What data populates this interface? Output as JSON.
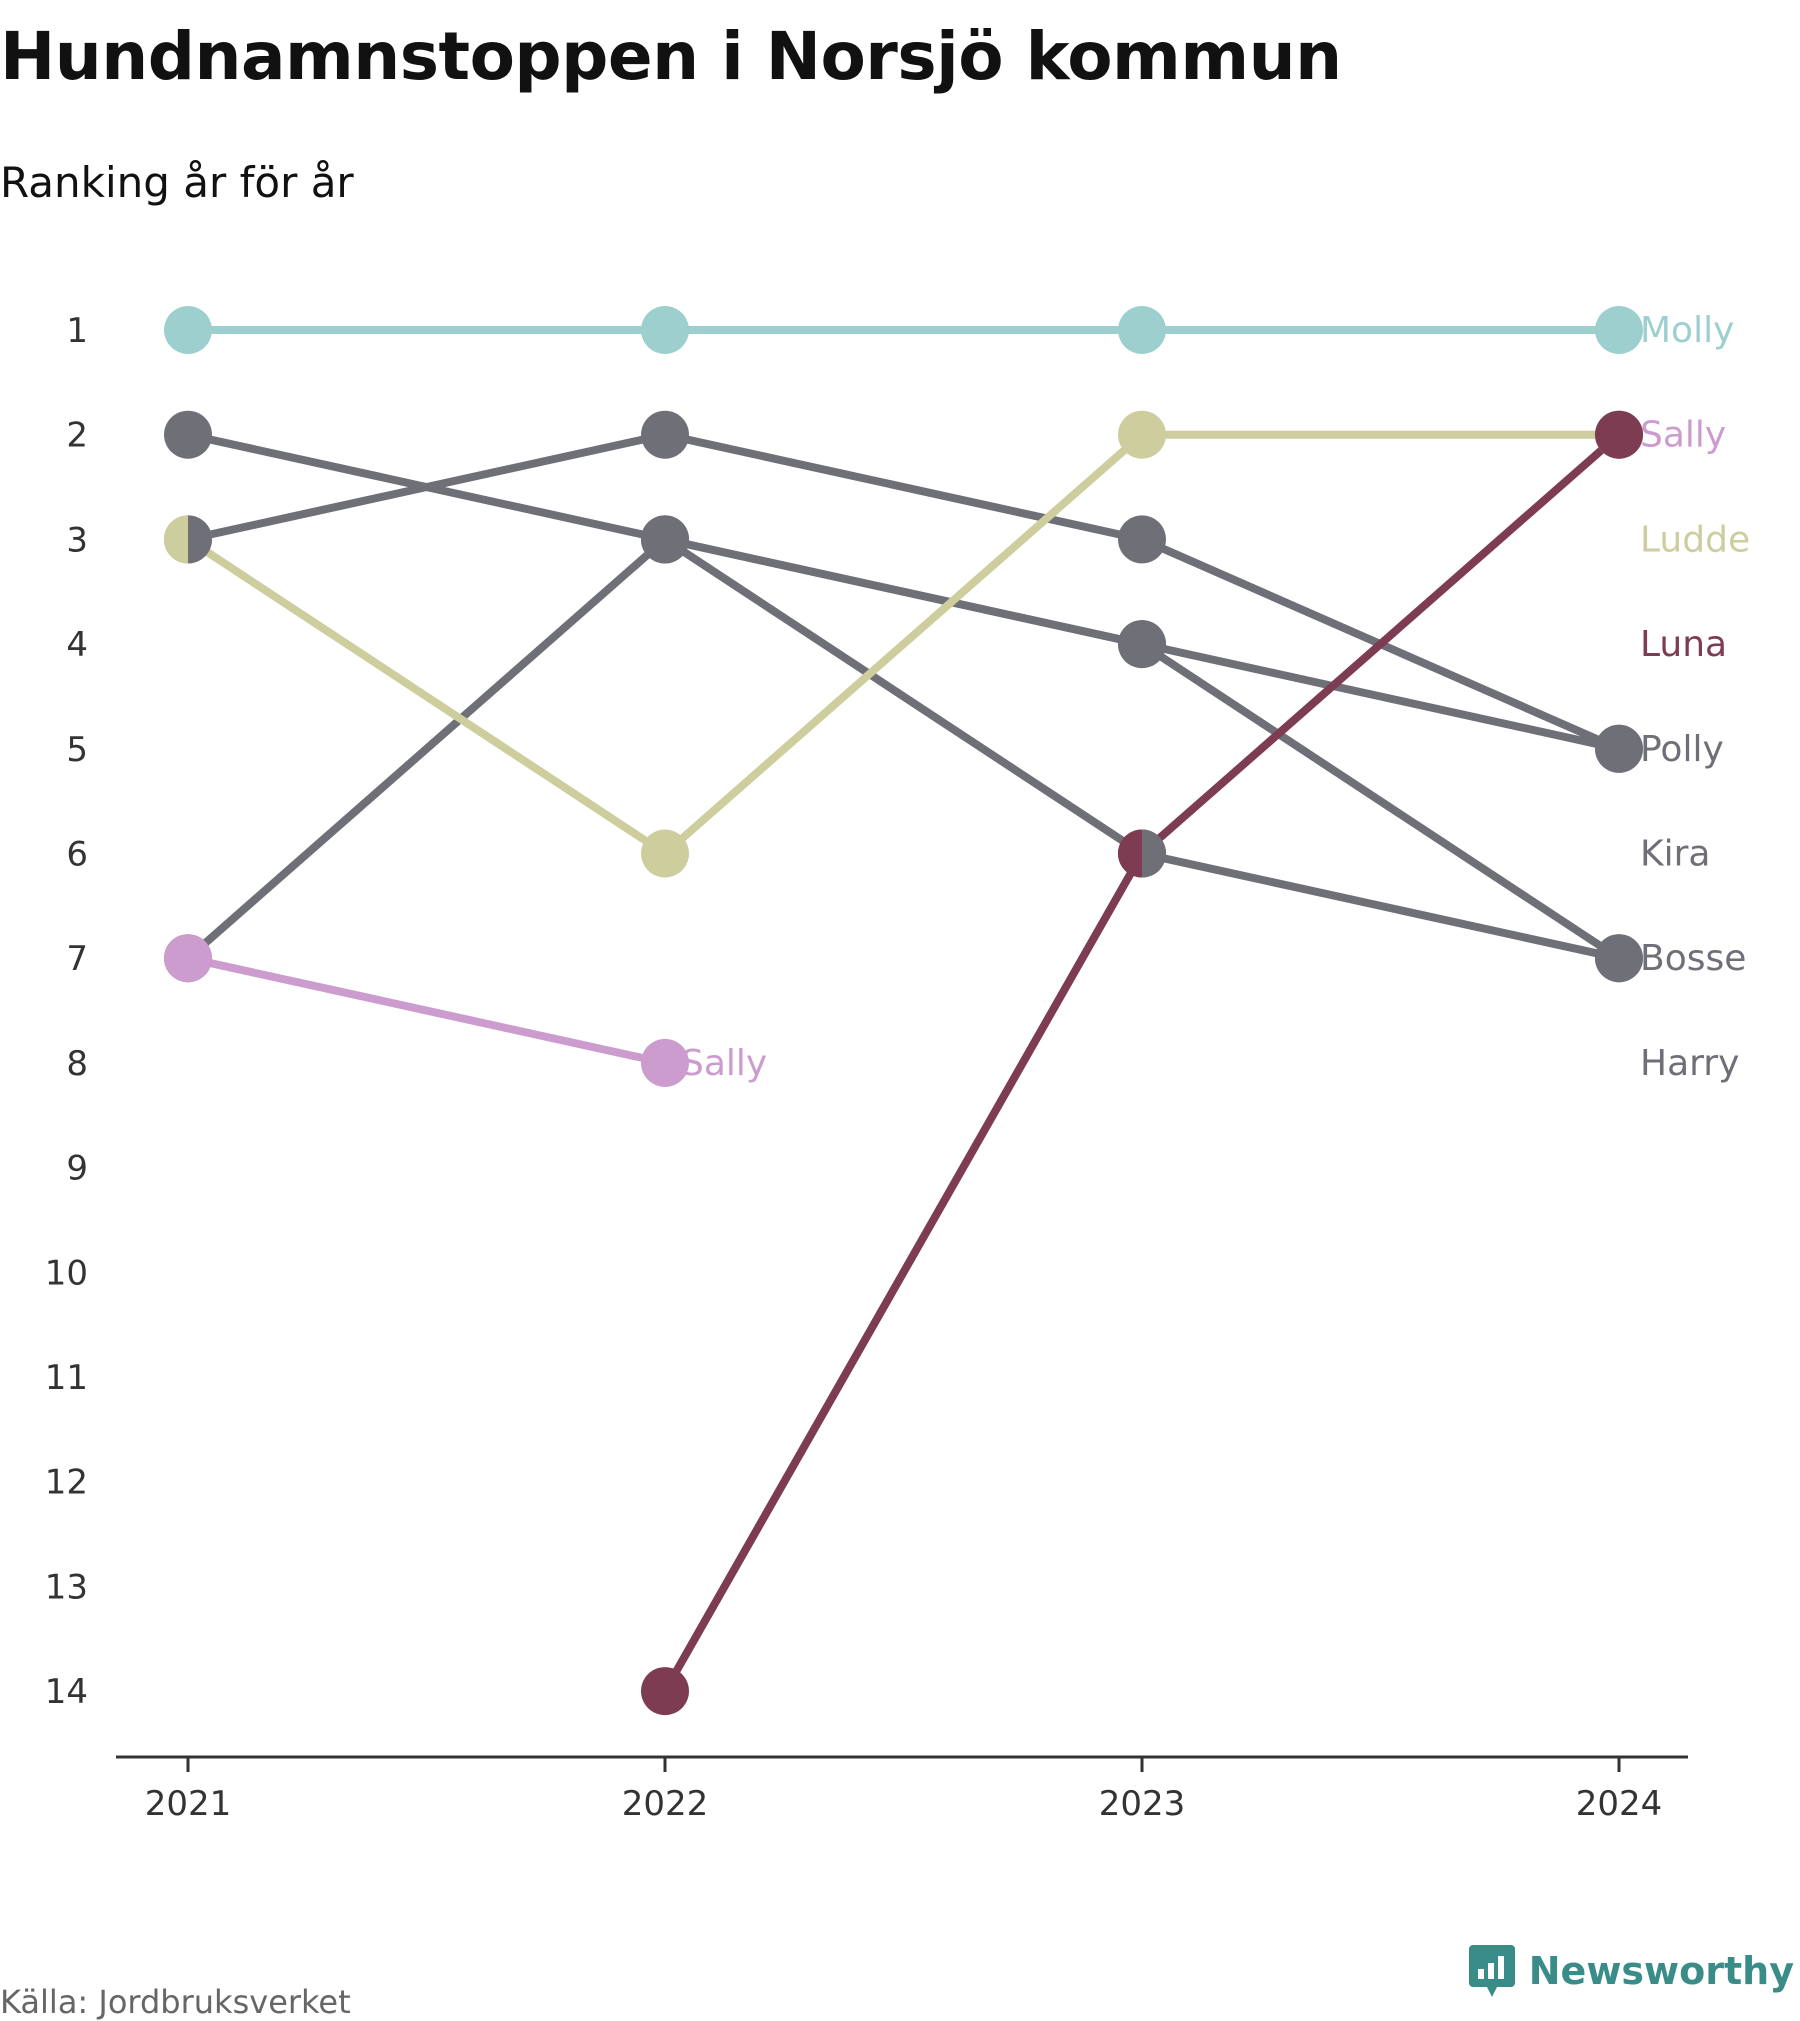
{
  "header": {
    "title": "Hundnamnstoppen i Norsjö kommun",
    "subtitle": "Ranking år för år"
  },
  "footer": {
    "source": "Källa: Jordbruksverket",
    "brand": "Newsworthy"
  },
  "colors": {
    "grey": "#6f6f78",
    "molly": "#9ecfcf",
    "ludde": "#cdcd9e",
    "sally": "#cd9ccf",
    "luna": "#7d3c52",
    "axis": "#333333",
    "brand": "#3a8c89"
  },
  "chart_data": {
    "type": "line",
    "x": [
      "2021",
      "2022",
      "2023",
      "2024"
    ],
    "y_ticks": [
      "1",
      "2",
      "3",
      "4",
      "5",
      "6",
      "7",
      "8",
      "9",
      "10",
      "11",
      "12",
      "13",
      "14"
    ],
    "y_axis": "reversed",
    "ylim": [
      1,
      14
    ],
    "series": [
      {
        "name": "Molly",
        "color": "#9ecfcf",
        "values": [
          1,
          1,
          1,
          1
        ],
        "label_at_end": true
      },
      {
        "name": "Sally",
        "color": "#cd9ccf",
        "values": [
          7,
          8,
          null,
          null
        ],
        "label_at_end": true
      },
      {
        "name": "Sally",
        "color": "#6f6f78",
        "label_color": "#cd9ccf",
        "values": [
          null,
          null,
          null,
          2
        ],
        "label_at_end": true
      },
      {
        "name": "Ludde",
        "color": "#cdcd9e",
        "values": [
          3,
          6,
          2,
          2
        ],
        "label_at_end": true
      },
      {
        "name": "Luna",
        "color": "#7d3c52",
        "values": [
          null,
          14,
          6,
          2
        ],
        "label_at_end": true
      },
      {
        "name": "Polly",
        "color": "#6f6f78",
        "values": [
          2,
          3,
          4,
          5
        ],
        "label_at_end": true
      },
      {
        "name": "Kira",
        "color": "#6f6f78",
        "values": [
          3,
          2,
          3,
          5
        ],
        "label_at_end": true
      },
      {
        "name": "Bosse",
        "color": "#6f6f78",
        "values": [
          7,
          3,
          6,
          7
        ],
        "label_at_end": true
      },
      {
        "name": "Harry",
        "color": "#6f6f78",
        "values": [
          null,
          3,
          4,
          7
        ],
        "label_at_end": true
      }
    ],
    "end_labels": [
      {
        "text": "Molly",
        "rank": 1,
        "color": "#9ecfcf"
      },
      {
        "text": "Sally",
        "rank": 2,
        "color": "#cd9ccf"
      },
      {
        "text": "Ludde",
        "rank": 3,
        "color": "#cdcd9e"
      },
      {
        "text": "Luna",
        "rank": 4,
        "color": "#7d3c52"
      },
      {
        "text": "Polly",
        "rank": 5,
        "color": "#6f6f78"
      },
      {
        "text": "Kira",
        "rank": 6,
        "color": "#6f6f78"
      },
      {
        "text": "Bosse",
        "rank": 7,
        "color": "#6f6f78"
      },
      {
        "text": "Harry",
        "rank": 8,
        "color": "#6f6f78"
      }
    ],
    "mid_labels": [
      {
        "text": "Sally",
        "x": "2022",
        "rank": 8,
        "color": "#cd9ccf"
      }
    ],
    "grid": false
  }
}
